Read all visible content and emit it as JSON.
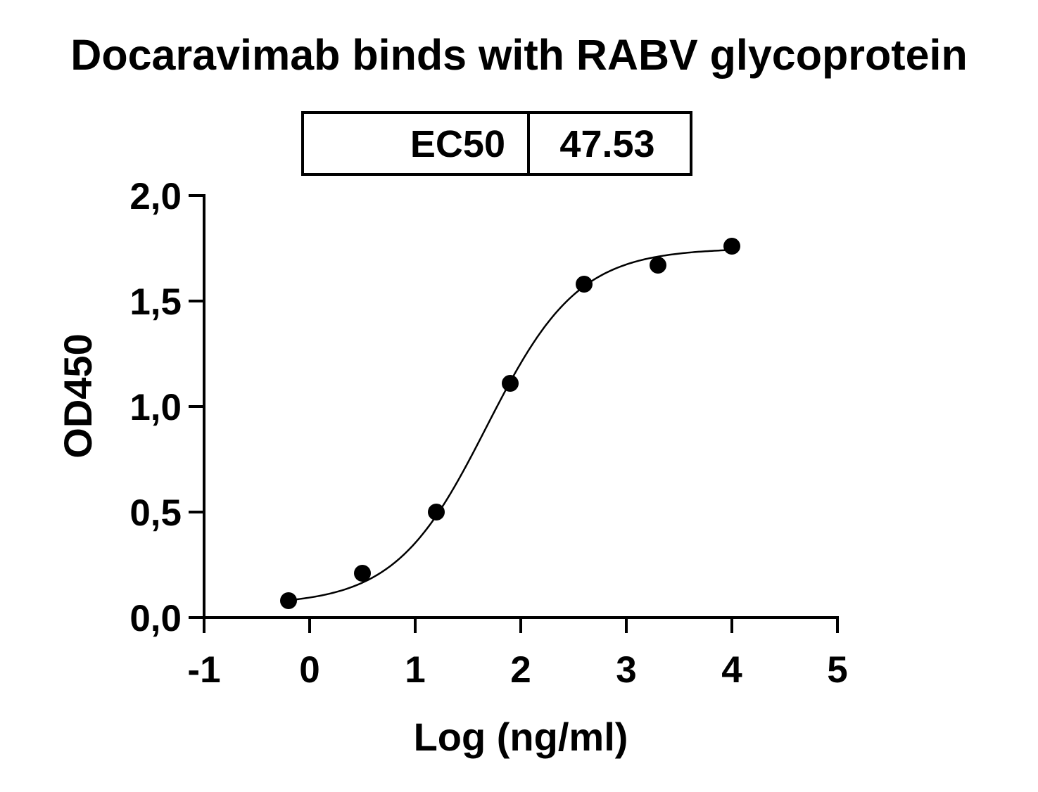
{
  "chart_data": {
    "type": "scatter",
    "title": "Docaravimab binds with RABV glycoprotein",
    "xlabel": "Log (ng/ml)",
    "ylabel": "OD450",
    "xlim": [
      -1,
      5
    ],
    "ylim": [
      0,
      2
    ],
    "x_ticks": [
      "-1",
      "0",
      "1",
      "2",
      "3",
      "4",
      "5"
    ],
    "y_ticks": [
      "0,0",
      "0,5",
      "1,0",
      "1,5",
      "2,0"
    ],
    "grid": false,
    "legend": "none",
    "ec50_table": {
      "label": "EC50",
      "value": "47.53"
    },
    "series": [
      {
        "x": [
          -0.2,
          0.5,
          1.2,
          1.9,
          2.6,
          3.3,
          4.0
        ],
        "y": [
          0.08,
          0.21,
          0.5,
          1.11,
          1.58,
          1.67,
          1.76
        ],
        "marker": "filled-circle",
        "color": "#000000"
      }
    ],
    "fit_curve": {
      "model": "4PL",
      "bottom": 0.06,
      "top": 1.75,
      "log_ec50": 1.677,
      "hill_slope": 1.0,
      "x_range": [
        -0.2,
        4.0
      ]
    }
  }
}
